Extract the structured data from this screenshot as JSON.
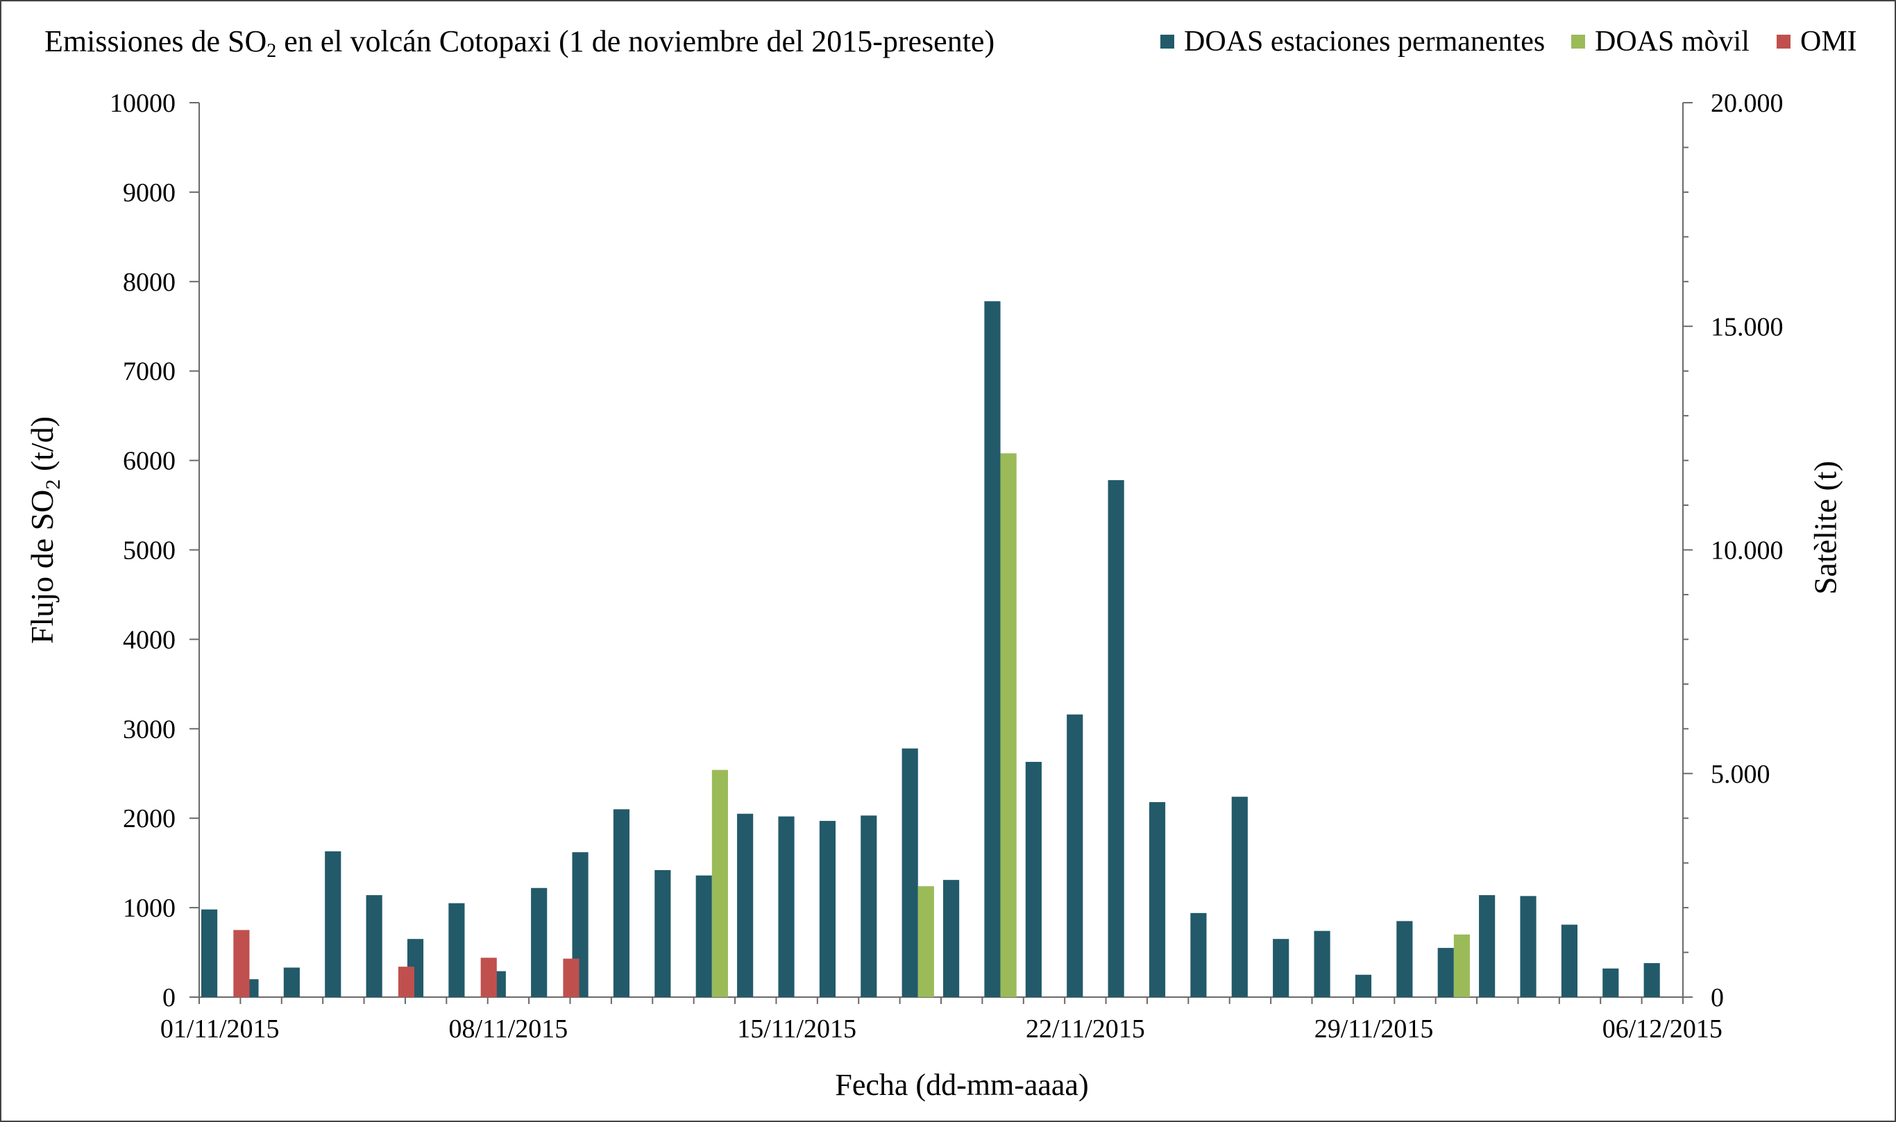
{
  "header": {
    "title_prefix": "Emissiones de SO",
    "title_sub": "2",
    "title_suffix": " en el volcán Cotopaxi (1 de  noviembre del 2015-presente)"
  },
  "axes": {
    "y_left_label_prefix": "Flujo de SO",
    "y_left_label_sub": "2",
    "y_left_label_suffix": " (t/d)",
    "y_right_label": "Satèlite (t)",
    "x_label": "Fecha (dd-mm-aaaa)"
  },
  "colors": {
    "doas_permanent": "#225a6a",
    "doas_mobile": "#9bbb59",
    "omi": "#c0504d"
  },
  "chart_data": {
    "type": "bar",
    "x_date_range": [
      "01/11/2015",
      "06/12/2015"
    ],
    "x_tick_labels": [
      "01/11/2015",
      "08/11/2015",
      "15/11/2015",
      "22/11/2015",
      "29/11/2015",
      "06/12/2015"
    ],
    "ylim": [
      0,
      10000
    ],
    "y_ticks": [
      "0",
      "1000",
      "2000",
      "3000",
      "4000",
      "5000",
      "6000",
      "7000",
      "8000",
      "9000",
      "10000"
    ],
    "y2lim": [
      0,
      20000
    ],
    "y2_ticks": [
      "0",
      "5.000",
      "10.000",
      "15.000",
      "20.000"
    ],
    "legend_position": "top-right",
    "grid": false,
    "series": [
      {
        "name": "DOAS estaciones permanentes",
        "axis": "left",
        "points": [
          [
            "01/11/2015",
            980
          ],
          [
            "02/11/2015",
            200
          ],
          [
            "03/11/2015",
            330
          ],
          [
            "04/11/2015",
            1630
          ],
          [
            "05/11/2015",
            1140
          ],
          [
            "06/11/2015",
            650
          ],
          [
            "07/11/2015",
            1050
          ],
          [
            "08/11/2015",
            290
          ],
          [
            "09/11/2015",
            1220
          ],
          [
            "10/11/2015",
            1620
          ],
          [
            "11/11/2015",
            2100
          ],
          [
            "12/11/2015",
            1420
          ],
          [
            "13/11/2015",
            1360
          ],
          [
            "14/11/2015",
            2050
          ],
          [
            "15/11/2015",
            2020
          ],
          [
            "16/11/2015",
            1970
          ],
          [
            "17/11/2015",
            2030
          ],
          [
            "18/11/2015",
            2780
          ],
          [
            "19/11/2015",
            1310
          ],
          [
            "20/11/2015",
            7780
          ],
          [
            "21/11/2015",
            2630
          ],
          [
            "22/11/2015",
            3160
          ],
          [
            "23/11/2015",
            5780
          ],
          [
            "24/11/2015",
            2180
          ],
          [
            "25/11/2015",
            940
          ],
          [
            "26/11/2015",
            2240
          ],
          [
            "27/11/2015",
            650
          ],
          [
            "28/11/2015",
            740
          ],
          [
            "29/11/2015",
            250
          ],
          [
            "30/11/2015",
            850
          ],
          [
            "01/12/2015",
            550
          ],
          [
            "02/12/2015",
            1140
          ],
          [
            "03/12/2015",
            1130
          ],
          [
            "04/12/2015",
            810
          ],
          [
            "05/12/2015",
            320
          ],
          [
            "06/12/2015",
            380
          ]
        ]
      },
      {
        "name": "DOAS mòvil",
        "axis": "left",
        "points": [
          [
            "13/11/2015",
            2540
          ],
          [
            "18/11/2015",
            1240
          ],
          [
            "20/11/2015",
            6080
          ],
          [
            "01/12/2015",
            700
          ]
        ]
      },
      {
        "name": "OMI",
        "axis": "right",
        "points": [
          [
            "01/11/2015",
            1500
          ],
          [
            "05/11/2015",
            680
          ],
          [
            "07/11/2015",
            880
          ],
          [
            "09/11/2015",
            860
          ]
        ]
      }
    ]
  }
}
